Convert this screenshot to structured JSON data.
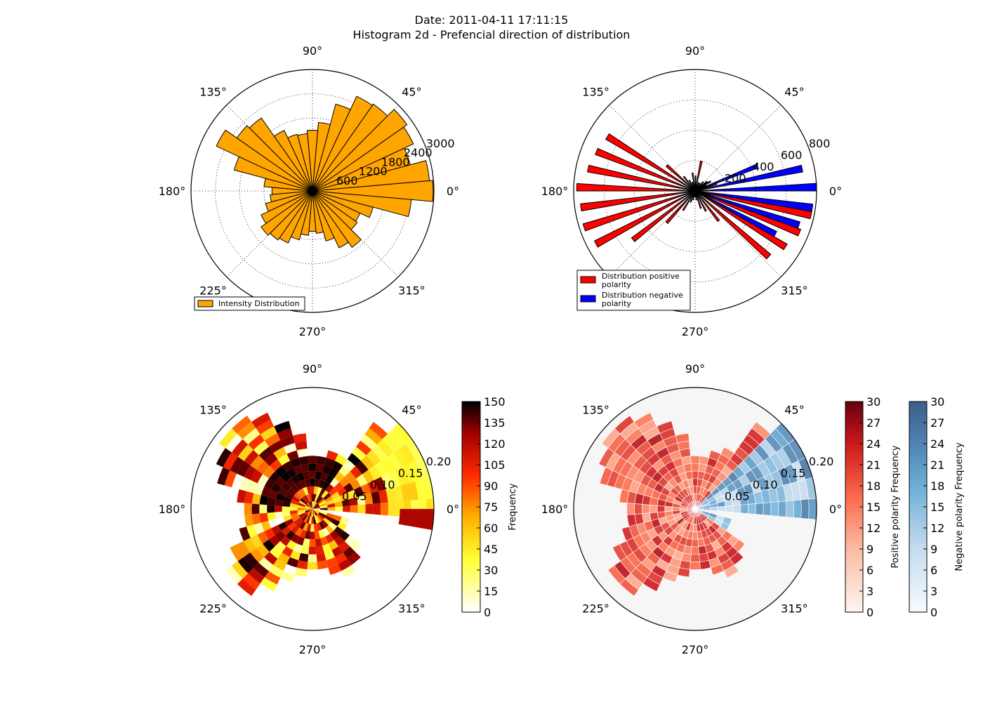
{
  "title_line1": "Date: 2011-04-11 17:11:15",
  "title_line2": "Histogram 2d - Prefencial direction of distribution",
  "angle_labels": [
    "0°",
    "45°",
    "90°",
    "135°",
    "180°",
    "225°",
    "270°",
    "315°"
  ],
  "colors": {
    "orange": "#ffa500",
    "red": "#ff0000",
    "blue": "#0000ff"
  },
  "chart_data": [
    {
      "type": "bar",
      "subtype": "polar",
      "legend": [
        "Intensity Distribution"
      ],
      "legend_placement": "bottom-left",
      "rlim": [
        0,
        3000
      ],
      "radial_ticks": [
        "600",
        "1200",
        "1800",
        "2400",
        "3000"
      ],
      "grid": true,
      "theta_deg": [
        0,
        10,
        20,
        30,
        40,
        50,
        60,
        70,
        80,
        90,
        100,
        110,
        120,
        130,
        140,
        150,
        160,
        170,
        180,
        190,
        200,
        210,
        220,
        230,
        240,
        250,
        260,
        270,
        280,
        290,
        300,
        310,
        320,
        330,
        340,
        350
      ],
      "values": [
        2980,
        2900,
        2500,
        2750,
        2850,
        2620,
        2580,
        2220,
        1700,
        1500,
        1420,
        1450,
        1650,
        2200,
        2280,
        2620,
        2000,
        1200,
        1000,
        1050,
        1200,
        1400,
        1550,
        1480,
        1420,
        1250,
        1100,
        1000,
        1050,
        1280,
        1550,
        1700,
        1350,
        1300,
        1550,
        2450
      ]
    },
    {
      "type": "bar",
      "subtype": "polar",
      "legend": [
        "Distribution positive\n polarity",
        "Distribution negative\n polarity"
      ],
      "legend_placement": "bottom-left",
      "rlim": [
        0,
        800
      ],
      "radial_ticks": [
        "200",
        "400",
        "600",
        "800"
      ],
      "grid": true,
      "theta_deg": [
        0,
        10,
        20,
        30,
        40,
        50,
        60,
        70,
        80,
        90,
        100,
        110,
        120,
        130,
        140,
        150,
        160,
        170,
        180,
        190,
        200,
        210,
        220,
        230,
        240,
        250,
        260,
        270,
        280,
        290,
        300,
        310,
        320,
        330,
        340,
        350
      ],
      "series": [
        {
          "name": "Distribution positive\n polarity",
          "color": "#ff0000",
          "values": [
            0,
            0,
            150,
            80,
            100,
            80,
            60,
            60,
            200,
            100,
            120,
            60,
            80,
            120,
            250,
            680,
            700,
            720,
            780,
            760,
            770,
            740,
            520,
            280,
            150,
            80,
            60,
            40,
            60,
            120,
            150,
            250,
            650,
            700,
            740,
            780
          ]
        },
        {
          "name": "Distribution negative\n polarity",
          "color": "#0000ff",
          "values": [
            800,
            720,
            440,
            120,
            60,
            30,
            20,
            0,
            0,
            0,
            0,
            0,
            0,
            0,
            0,
            0,
            0,
            0,
            0,
            0,
            0,
            0,
            0,
            0,
            0,
            0,
            0,
            0,
            0,
            0,
            0,
            0,
            0,
            600,
            720,
            780
          ]
        }
      ]
    },
    {
      "type": "heatmap",
      "subtype": "polar",
      "rlim": [
        0,
        0.2
      ],
      "radial_ticks": [
        "0.05",
        "0.10",
        "0.15",
        "0.20"
      ],
      "colorbar": {
        "label": "Frequency",
        "min": 0,
        "max": 150,
        "ticks": [
          "0",
          "15",
          "30",
          "45",
          "60",
          "75",
          "90",
          "105",
          "120",
          "135",
          "150"
        ]
      }
    },
    {
      "type": "heatmap",
      "subtype": "polar",
      "rlim": [
        0,
        0.2
      ],
      "radial_ticks": [
        "0.05",
        "0.10",
        "0.15",
        "0.20"
      ],
      "colorbars": [
        {
          "label": "Positive polarity Frequency",
          "min": 0,
          "max": 30,
          "ticks": [
            "0",
            "3",
            "6",
            "9",
            "12",
            "15",
            "18",
            "21",
            "24",
            "27",
            "30"
          ]
        },
        {
          "label": "Negative polarity Frequency",
          "min": 0,
          "max": 30,
          "ticks": [
            "0",
            "3",
            "6",
            "9",
            "12",
            "15",
            "18",
            "21",
            "24",
            "27",
            "30"
          ]
        }
      ]
    }
  ]
}
